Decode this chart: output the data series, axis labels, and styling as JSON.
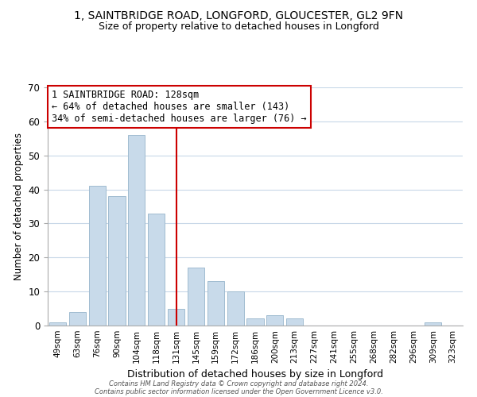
{
  "title": "1, SAINTBRIDGE ROAD, LONGFORD, GLOUCESTER, GL2 9FN",
  "subtitle": "Size of property relative to detached houses in Longford",
  "xlabel": "Distribution of detached houses by size in Longford",
  "ylabel": "Number of detached properties",
  "bar_labels": [
    "49sqm",
    "63sqm",
    "76sqm",
    "90sqm",
    "104sqm",
    "118sqm",
    "131sqm",
    "145sqm",
    "159sqm",
    "172sqm",
    "186sqm",
    "200sqm",
    "213sqm",
    "227sqm",
    "241sqm",
    "255sqm",
    "268sqm",
    "282sqm",
    "296sqm",
    "309sqm",
    "323sqm"
  ],
  "bar_values": [
    1,
    4,
    41,
    38,
    56,
    33,
    5,
    17,
    13,
    10,
    2,
    3,
    2,
    0,
    0,
    0,
    0,
    0,
    0,
    1,
    0
  ],
  "bar_color": "#c8daea",
  "bar_edge_color": "#a0bcd0",
  "vline_index": 6,
  "vline_color": "#cc0000",
  "ylim": [
    0,
    70
  ],
  "yticks": [
    0,
    10,
    20,
    30,
    40,
    50,
    60,
    70
  ],
  "annotation_title": "1 SAINTBRIDGE ROAD: 128sqm",
  "annotation_line1": "← 64% of detached houses are smaller (143)",
  "annotation_line2": "34% of semi-detached houses are larger (76) →",
  "annotation_box_color": "#ffffff",
  "annotation_box_edge": "#cc0000",
  "footer1": "Contains HM Land Registry data © Crown copyright and database right 2024.",
  "footer2": "Contains public sector information licensed under the Open Government Licence v3.0.",
  "background_color": "#ffffff",
  "grid_color": "#c8d8e8"
}
